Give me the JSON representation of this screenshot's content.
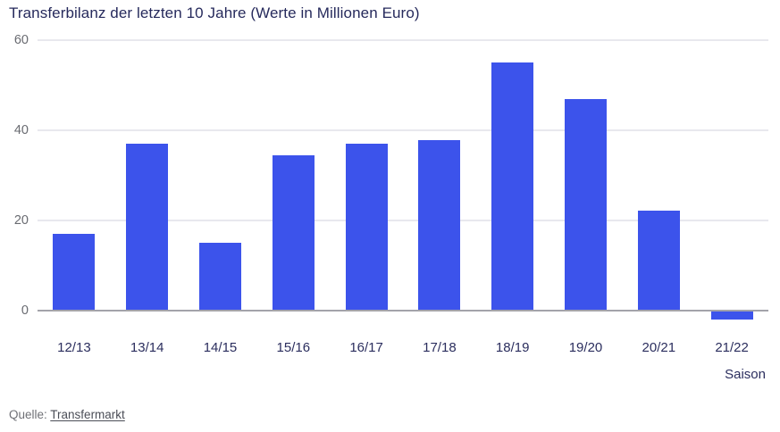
{
  "chart_data": {
    "type": "bar",
    "title": "Transferbilanz der letzten 10 Jahre (Werte in Millionen Euro)",
    "categories": [
      "12/13",
      "13/14",
      "14/15",
      "15/16",
      "16/17",
      "17/18",
      "18/19",
      "19/20",
      "20/21",
      "21/22"
    ],
    "values": [
      17,
      37,
      15,
      34.4,
      37.1,
      37.8,
      55,
      47,
      22.2,
      -2
    ],
    "xlabel": "Saison",
    "ylabel": "",
    "yticks": [
      0,
      20,
      40,
      60
    ],
    "ylim": [
      -5,
      60
    ],
    "grid": true,
    "legend_position": "none",
    "bar_color": "#3C53EB"
  },
  "source": {
    "label": "Quelle:",
    "link_text": "Transfermarkt"
  },
  "colors": {
    "background": "#FFFFFF",
    "title_text": "#262A5C",
    "xtick_text": "#2B2E5E",
    "ytick_text": "#696B71",
    "gridline": "#E8E8EE",
    "zero_line": "#A3A3AA",
    "bar": "#3C53EB",
    "source_text": "#6F7076",
    "source_link": "#4B4E57"
  }
}
